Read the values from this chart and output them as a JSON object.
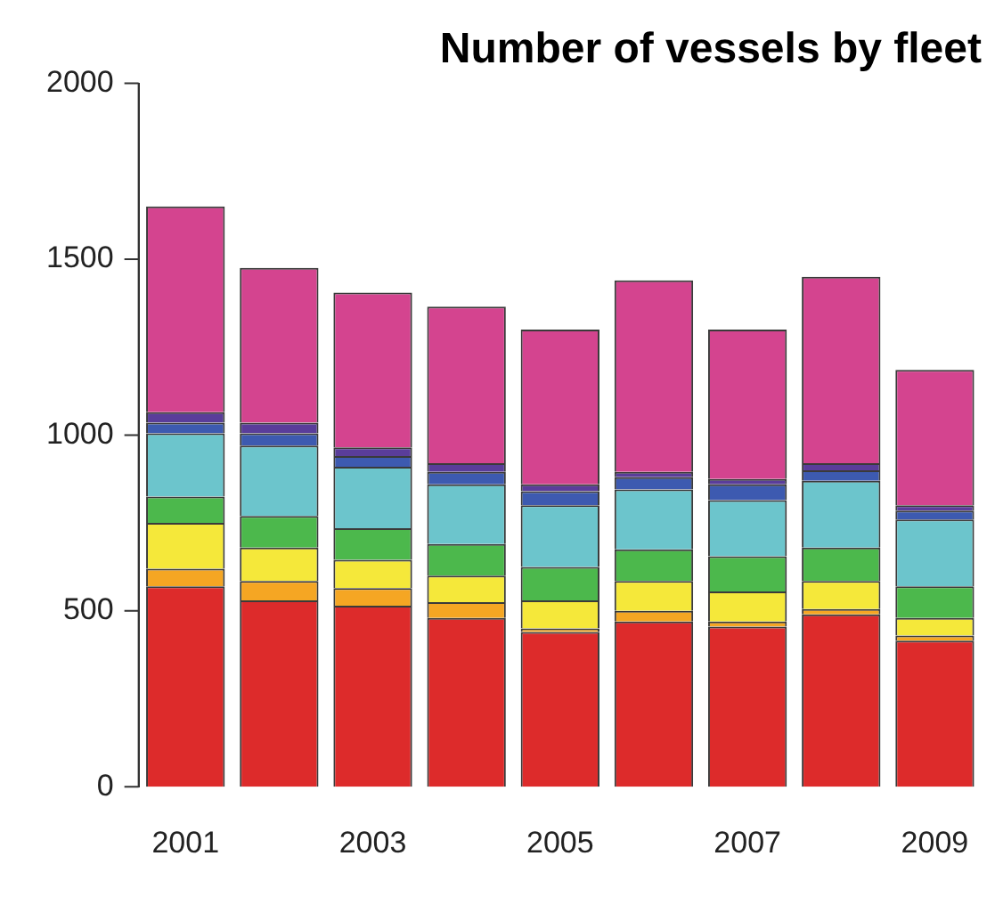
{
  "chart_data": {
    "type": "bar",
    "title": "Number of vessels by fleet",
    "stacked": true,
    "categories": [
      "2001",
      null,
      "2003",
      null,
      "2005",
      null,
      "2007",
      null,
      "2009"
    ],
    "series": [
      {
        "color": "#dd2b2b",
        "values": [
          570,
          530,
          515,
          480,
          440,
          470,
          455,
          490,
          415
        ]
      },
      {
        "color": "#f5a623",
        "values": [
          50,
          55,
          50,
          45,
          10,
          30,
          15,
          15,
          15
        ]
      },
      {
        "color": "#f5e83a",
        "values": [
          130,
          95,
          80,
          75,
          80,
          85,
          85,
          80,
          50
        ]
      },
      {
        "color": "#4cb84c",
        "values": [
          75,
          90,
          90,
          90,
          95,
          90,
          100,
          95,
          90
        ]
      },
      {
        "color": "#6cc5cc",
        "values": [
          180,
          200,
          175,
          170,
          175,
          170,
          160,
          190,
          190
        ]
      },
      {
        "color": "#3d5ab0",
        "values": [
          30,
          35,
          30,
          35,
          40,
          35,
          45,
          30,
          25
        ]
      },
      {
        "color": "#5a3d9a",
        "values": [
          30,
          30,
          25,
          25,
          20,
          15,
          15,
          20,
          15
        ]
      },
      {
        "color": "#d4448f",
        "values": [
          585,
          440,
          440,
          445,
          440,
          545,
          425,
          530,
          385
        ]
      }
    ],
    "ylim": [
      0,
      2000
    ],
    "yticks": [
      0,
      500,
      1000,
      1500,
      2000
    ],
    "grid": false,
    "legend": false
  }
}
